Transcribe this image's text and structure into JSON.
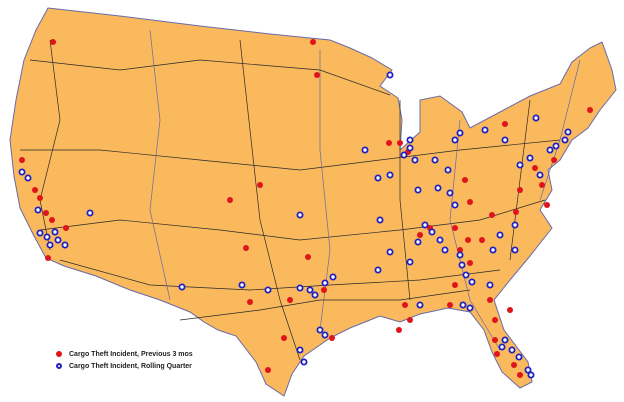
{
  "legend": {
    "items": [
      {
        "label": "Cargo Theft Incident, Previous 3 mos",
        "color": "#e0141c",
        "marker": "filled-circle"
      },
      {
        "label": "Cargo Theft Incident, Rolling Quarter",
        "color": "#2020c0",
        "marker": "ring-circle"
      }
    ]
  },
  "colors": {
    "land": "#f9b95c",
    "borders": "#6a6aa8",
    "roads": "#2a2a2a",
    "background": "#ffffff"
  }
}
